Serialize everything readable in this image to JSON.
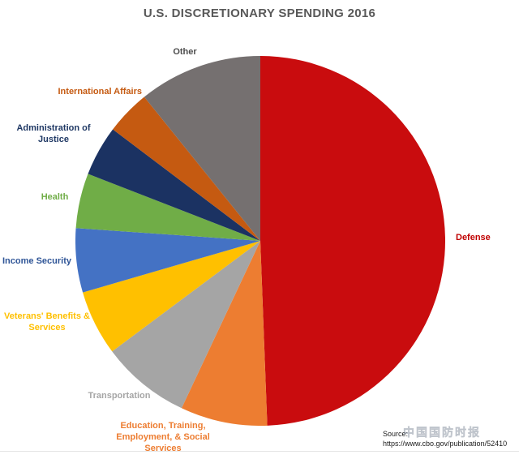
{
  "chart_data": {
    "type": "pie",
    "title": "U.S. DISCRETIONARY SPENDING 2016",
    "start_angle_deg": 0,
    "direction": "clockwise",
    "values_are": "percent of total, estimated from slice angles",
    "slices": [
      {
        "label": "Defense",
        "value": 49.4,
        "color": "#C90C0E",
        "label_color": "#C00000"
      },
      {
        "label": "Education, Training, Employment, & Social Services",
        "value": 7.6,
        "color": "#ED7D31",
        "label_color": "#ED7D31"
      },
      {
        "label": "Transportation",
        "value": 7.8,
        "color": "#A5A5A5",
        "label_color": "#A6A6A6"
      },
      {
        "label": "Veterans' Benefits & Services",
        "value": 5.7,
        "color": "#FFC000",
        "label_color": "#FFC000"
      },
      {
        "label": "Income Security",
        "value": 5.6,
        "color": "#4472C4",
        "label_color": "#2F5597"
      },
      {
        "label": "Health",
        "value": 4.8,
        "color": "#70AD47",
        "label_color": "#70AD47"
      },
      {
        "label": "Administration of Justice",
        "value": 4.4,
        "color": "#1B3262",
        "label_color": "#1F3864"
      },
      {
        "label": "International Affairs",
        "value": 3.9,
        "color": "#C55A11",
        "label_color": "#C55A11"
      },
      {
        "label": "Other",
        "value": 10.8,
        "color": "#757070",
        "label_color": "#4D4D4D"
      }
    ],
    "legend_position": "none",
    "grid": false
  },
  "source": {
    "label": "Source:",
    "url": "https://www.cbo.gov/publication/52410"
  },
  "watermark_text": "中国国防时报"
}
